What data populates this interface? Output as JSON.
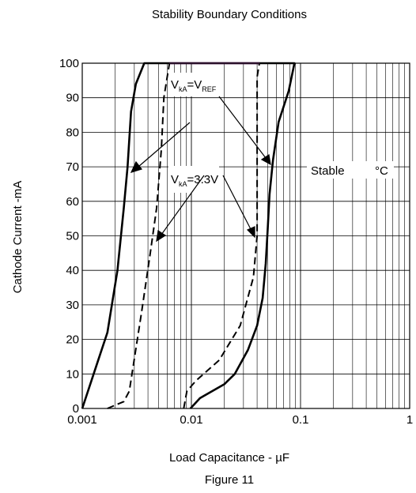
{
  "chart_data": {
    "type": "line",
    "title": "Stability Boundary Conditions",
    "xlabel": "Load Capacitance - µF",
    "ylabel": "Cathode  Current -mA",
    "caption": "Figure  11",
    "x_scale": "log",
    "xlim": [
      0.001,
      1
    ],
    "ylim": [
      0,
      100
    ],
    "x_ticks": [
      {
        "value": 0.001,
        "label": "0.001"
      },
      {
        "value": 0.01,
        "label": "0.01"
      },
      {
        "value": 0.1,
        "label": "0.1"
      },
      {
        "value": 1,
        "label": "1"
      }
    ],
    "y_ticks": [
      0,
      10,
      20,
      30,
      40,
      50,
      60,
      70,
      80,
      90,
      100
    ],
    "grid": true,
    "series": [
      {
        "style": "solid",
        "points": [
          [
            0.001,
            0
          ],
          [
            0.0014,
            14
          ],
          [
            0.0017,
            22
          ],
          [
            0.0021,
            40
          ],
          [
            0.0024,
            58
          ],
          [
            0.0026,
            70
          ],
          [
            0.0028,
            86
          ],
          [
            0.0031,
            94
          ],
          [
            0.0037,
            100
          ],
          [
            0.088,
            100
          ],
          [
            0.078,
            92
          ],
          [
            0.063,
            83
          ],
          [
            0.056,
            72
          ],
          [
            0.052,
            62
          ],
          [
            0.05,
            52
          ],
          [
            0.048,
            42
          ],
          [
            0.045,
            32
          ],
          [
            0.04,
            24
          ],
          [
            0.033,
            17
          ],
          [
            0.025,
            10
          ],
          [
            0.02,
            7
          ],
          [
            0.012,
            3
          ],
          [
            0.0098,
            0
          ]
        ]
      },
      {
        "style": "dashed",
        "points": [
          [
            0.0017,
            0
          ],
          [
            0.0024,
            2
          ],
          [
            0.0027,
            5
          ],
          [
            0.0035,
            28
          ],
          [
            0.0042,
            45
          ],
          [
            0.0048,
            58
          ],
          [
            0.0053,
            75
          ],
          [
            0.0056,
            90
          ],
          [
            0.006,
            96
          ],
          [
            0.0063,
            100
          ]
        ]
      },
      {
        "style": "dashed",
        "points": [
          [
            0.0085,
            0
          ],
          [
            0.0091,
            5
          ],
          [
            0.011,
            8
          ],
          [
            0.018,
            14
          ],
          [
            0.028,
            24
          ],
          [
            0.037,
            38
          ],
          [
            0.04,
            50
          ],
          [
            0.04,
            80
          ],
          [
            0.04,
            96
          ],
          [
            0.042,
            100
          ]
        ]
      }
    ],
    "annotations": [
      {
        "label_main": "V",
        "label_sub1": "kA",
        "label_eq": "=V",
        "label_sub2": "REF"
      },
      {
        "label_main": "V",
        "label_sub1": "kA",
        "label_eq": "=3.3V"
      },
      {
        "label": "Stable"
      },
      {
        "label": "°C"
      }
    ]
  }
}
